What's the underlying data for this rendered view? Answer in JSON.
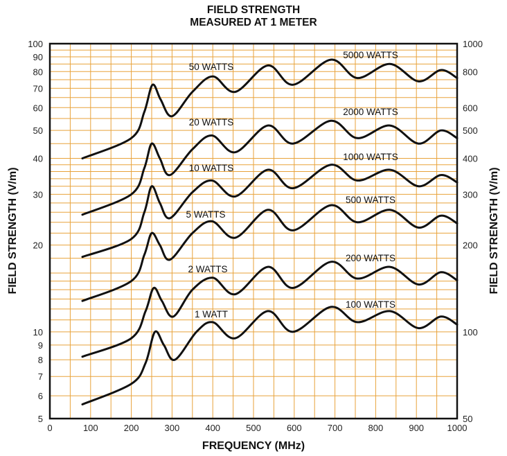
{
  "chart_data": {
    "type": "line",
    "title": "FIELD STRENGTH",
    "subtitle": "MEASURED AT 1 METER",
    "xlabel": "FREQUENCY (MHz)",
    "ylabel": "FIELD STRENGTH (V/m)",
    "ylabel_right": "FIELD STRENGTH (V/m)",
    "x_ticks": [
      "0",
      "100",
      "200",
      "300",
      "400",
      "500",
      "600",
      "700",
      "800",
      "900",
      "1000"
    ],
    "y_ticks_left": [
      "5",
      "6",
      "7",
      "8",
      "9",
      "10",
      "20",
      "30",
      "40",
      "50",
      "60",
      "70",
      "80",
      "90",
      "100"
    ],
    "y_ticks_right": [
      "50",
      "100",
      "200",
      "300",
      "400",
      "500",
      "600",
      "800",
      "1000"
    ],
    "xlim": [
      0,
      1000
    ],
    "ylim": [
      5,
      100
    ],
    "ylim_right": [
      50,
      1000
    ],
    "yscale": "log",
    "grid": true,
    "grid_color": "#e8a23a",
    "line_color": "#111111",
    "series": [
      {
        "name": "1 WATT",
        "x": [
          80,
          200,
          235,
          258,
          280,
          307,
          360,
          400,
          455,
          535,
          597,
          690,
          755,
          835,
          905,
          960,
          1000
        ],
        "y": [
          5.6,
          6.6,
          7.8,
          10.0,
          9.0,
          8.0,
          10.0,
          10.8,
          9.5,
          11.8,
          10.0,
          12.2,
          10.8,
          11.8,
          10.3,
          11.3,
          10.6
        ]
      },
      {
        "name": "2 WATTS",
        "x": [
          80,
          200,
          235,
          255,
          275,
          303,
          350,
          400,
          455,
          535,
          597,
          690,
          755,
          835,
          905,
          960,
          1000
        ],
        "y": [
          8.2,
          9.5,
          11.8,
          14.2,
          12.8,
          11.3,
          14.0,
          15.4,
          13.5,
          16.8,
          14.2,
          17.5,
          15.3,
          16.8,
          14.6,
          16.1,
          15.1
        ]
      },
      {
        "name": "5 WATTS",
        "x": [
          80,
          200,
          232,
          250,
          270,
          295,
          350,
          398,
          455,
          535,
          597,
          690,
          755,
          835,
          905,
          960,
          1000
        ],
        "y": [
          12.8,
          15.0,
          18.5,
          22.0,
          20.0,
          17.8,
          22.0,
          24.2,
          21.2,
          26.5,
          22.5,
          27.5,
          24.0,
          26.5,
          23.0,
          25.3,
          23.8
        ]
      },
      {
        "name": "10 WATTS",
        "x": [
          80,
          200,
          232,
          250,
          270,
          295,
          350,
          398,
          455,
          535,
          597,
          690,
          755,
          835,
          905,
          960,
          1000
        ],
        "y": [
          18.2,
          21.0,
          26.0,
          32.0,
          28.0,
          24.8,
          30.5,
          33.5,
          29.5,
          36.5,
          31.5,
          38.0,
          33.5,
          36.5,
          32.0,
          35.0,
          33.0
        ]
      },
      {
        "name": "20 WATTS",
        "x": [
          80,
          200,
          232,
          250,
          270,
          295,
          350,
          398,
          455,
          535,
          597,
          690,
          755,
          835,
          905,
          960,
          1000
        ],
        "y": [
          25.5,
          30.0,
          37.0,
          45.0,
          40.0,
          35.0,
          43.0,
          48.0,
          42.0,
          52.0,
          45.0,
          54.0,
          47.0,
          52.0,
          45.0,
          50.0,
          47.0
        ]
      },
      {
        "name": "50 WATTS",
        "x": [
          80,
          200,
          232,
          252,
          272,
          300,
          350,
          400,
          455,
          535,
          597,
          690,
          755,
          835,
          905,
          960,
          1000
        ],
        "y": [
          40.0,
          47.0,
          58.0,
          72.0,
          64.0,
          56.0,
          68.0,
          77.0,
          68.0,
          84.0,
          72.0,
          88.0,
          76.0,
          85.0,
          74.0,
          81.0,
          76.0
        ]
      }
    ],
    "right_axis_labels": [
      "100 WATTS",
      "200 WATTS",
      "500 WATTS",
      "1000 WATTS",
      "2000 WATTS",
      "5000 WATTS"
    ]
  }
}
